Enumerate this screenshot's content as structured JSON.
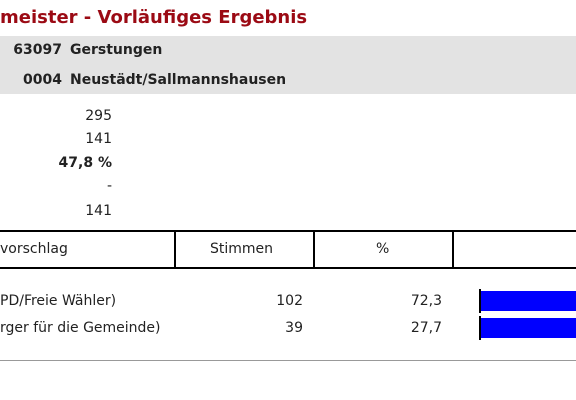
{
  "header": {
    "title": "meister - Vorläufiges Ergebnis",
    "municipality_code": "63097",
    "municipality": "Gerstungen",
    "district_code": "0004",
    "district": "Neustädt/Sallmannshausen"
  },
  "summary": [
    "295",
    "141",
    "47,8 %",
    "-",
    "141"
  ],
  "table": {
    "columns": [
      "vorschlag",
      "Stimmen",
      "%"
    ],
    "rows": [
      {
        "name": "PD/Freie Wähler)",
        "votes": "102",
        "percent": 72.3,
        "percent_label": "72,3"
      },
      {
        "name": "rger für die Gemeinde)",
        "votes": "39",
        "percent": 27.7,
        "percent_label": "27,7"
      }
    ]
  }
}
